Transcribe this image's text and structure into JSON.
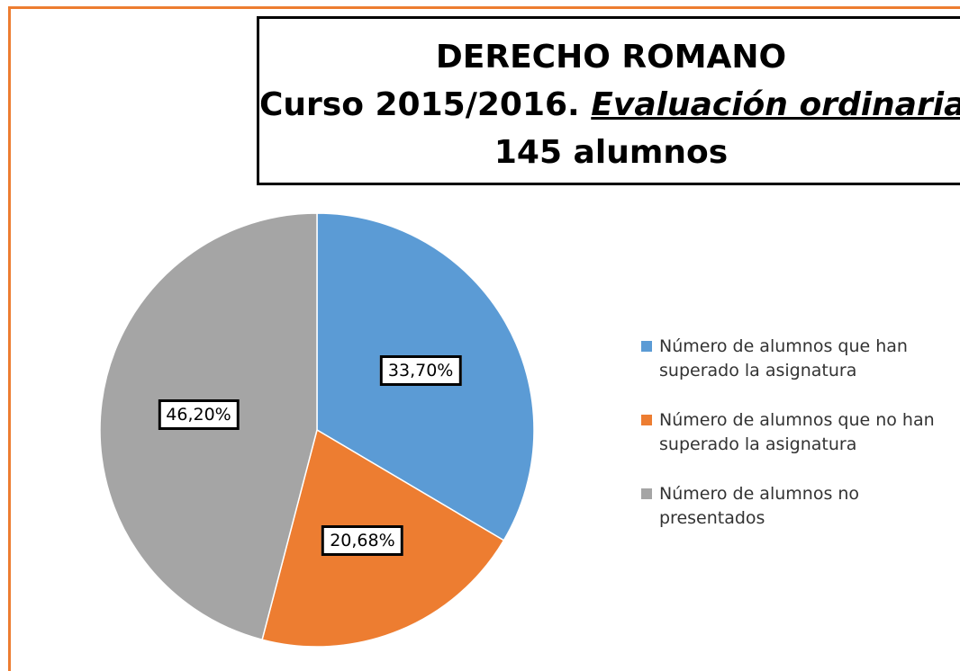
{
  "chart_data": {
    "type": "pie",
    "title": "DERECHO ROMANO",
    "subtitle": [
      "Curso 2015/2016.",
      "Evaluación ordinaria",
      "145 alumnos"
    ],
    "categories": [
      "Número de alumnos que han superado la asignatura",
      "Número de alumnos que no han superado la asignatura",
      "Número de alumnos no presentados"
    ],
    "values": [
      33.7,
      20.68,
      46.2
    ],
    "value_labels": [
      "33,70%",
      "20,68%",
      "46,20%"
    ],
    "colors": [
      "#5b9bd5",
      "#ed7d31",
      "#a5a5a5"
    ],
    "legend": "right"
  }
}
